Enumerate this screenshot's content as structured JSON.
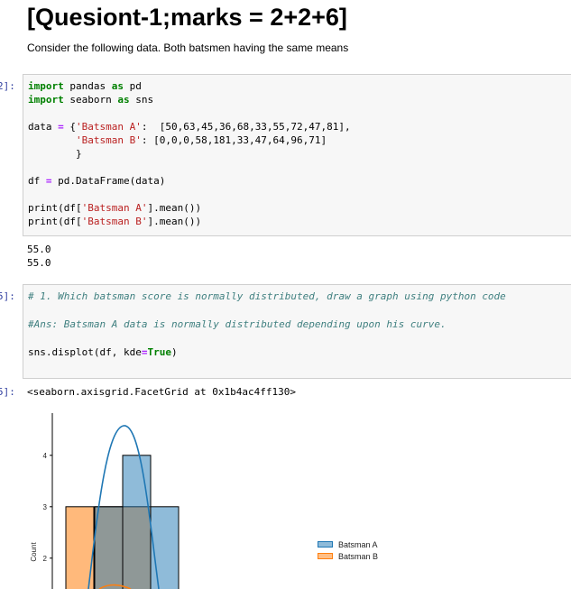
{
  "heading": "[Quesiont-1;marks = 2+2+6]",
  "description": "Consider the following data. Both batsmen having the same means",
  "cells": [
    {
      "prompt": "2]:",
      "lines": {
        "l1": [
          "import",
          " pandas ",
          "as",
          " pd"
        ],
        "l2": [
          "import",
          " seaborn ",
          "as",
          " sns"
        ],
        "l3a": "data ",
        "l3b": "=",
        "l3c": " {",
        "l3d": "'Batsman A'",
        "l3e": ":  [50,63,45,36,68,33,55,72,47,81],",
        "l4a": "        ",
        "l4b": "'Batsman B'",
        "l4c": ": [0,0,0,58,181,33,47,64,96,71]",
        "l5": "        }",
        "l6a": "df ",
        "l6b": "=",
        "l6c": " pd.DataFrame(data)",
        "l7a": "print(df[",
        "l7b": "'Batsman A'",
        "l7c": "].mean())",
        "l8a": "print(df[",
        "l8b": "'Batsman B'",
        "l8c": "].mean())"
      },
      "outputs": [
        "55.0",
        "55.0"
      ]
    },
    {
      "prompt": "5]:",
      "comment1": "# 1. Which batsman score is normally distributed, draw a graph using python code",
      "comment2": "#Ans: Batsman A data is normally distributed depending upon his curve.",
      "code_a": "sns.displot(df, kde",
      "code_b": "=",
      "code_c": "True",
      "code_d": ")"
    }
  ],
  "result_prompt": "5]:",
  "result_text": "<seaborn.axisgrid.FacetGrid at 0x1b4ac4ff130>",
  "chart_data": {
    "type": "bar",
    "ylabel": "Count",
    "yticks": [
      "2",
      "3",
      "4"
    ],
    "series": [
      {
        "name": "Batsman A",
        "color": "#1f77b4",
        "bins": [
          {
            "x": "bin1",
            "count": 3
          },
          {
            "x": "bin2",
            "count": 4
          },
          {
            "x": "bin3",
            "count": 3
          }
        ]
      },
      {
        "name": "Batsman B",
        "color": "#ff7f0e",
        "bins": [
          {
            "x": "bin0",
            "count": 3
          },
          {
            "x": "bin1",
            "count": 3
          },
          {
            "x": "bin2",
            "count": 3
          }
        ]
      }
    ]
  }
}
